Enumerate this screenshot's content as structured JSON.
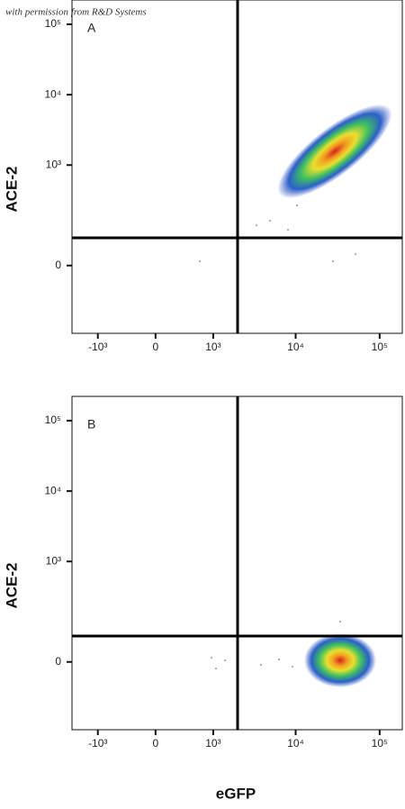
{
  "caption": "with permission from R&D Systems",
  "x_label": "eGFP",
  "chart_data": [
    {
      "type": "scatter",
      "title": "A",
      "y_label": "ACE-2",
      "xlim": [
        -2100,
        186000
      ],
      "ylim": [
        -340,
        221000
      ],
      "xticks": [
        {
          "value": -1000,
          "label": "-10³"
        },
        0,
        {
          "value": 1000,
          "label": "10³"
        },
        {
          "value": 10000,
          "label": "10⁴"
        },
        {
          "value": 100000,
          "label": "10⁵"
        }
      ],
      "yticks": [
        0,
        {
          "value": 1000,
          "label": "10³"
        },
        {
          "value": 10000,
          "label": "10⁴"
        },
        {
          "value": 100000,
          "label": "10⁵"
        }
      ]
    },
    {
      "type": "scatter",
      "title": "B",
      "y_label": "ACE-2",
      "xlim": [
        -2100,
        186000
      ],
      "ylim": [
        -340,
        221000
      ],
      "xticks": [
        {
          "value": -1000,
          "label": "-10³"
        },
        0,
        {
          "value": 1000,
          "label": "10³"
        },
        {
          "value": 10000,
          "label": "10⁴"
        },
        {
          "value": 100000,
          "label": "10⁵"
        }
      ],
      "yticks": [
        0,
        {
          "value": 1000,
          "label": "10³"
        },
        {
          "value": 10000,
          "label": "10⁴"
        },
        {
          "value": 100000,
          "label": "10⁵"
        }
      ]
    }
  ]
}
